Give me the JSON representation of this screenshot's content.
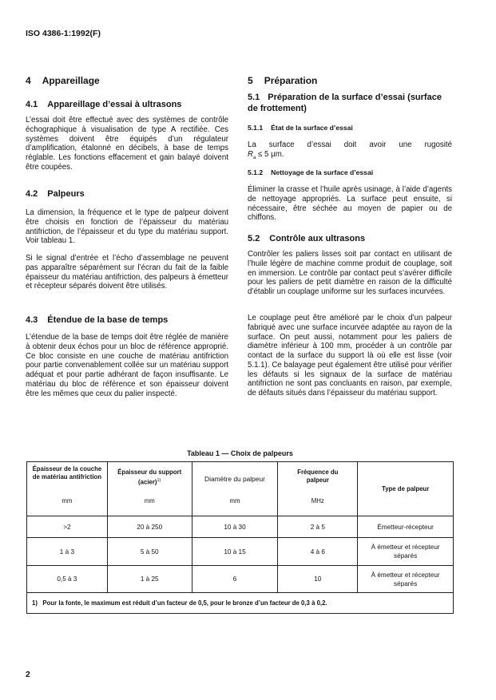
{
  "header": {
    "standard": "ISO 4386-1:1992(F)"
  },
  "left": {
    "s4": {
      "num": "4",
      "title": "Appareillage"
    },
    "s41": {
      "num": "4.1",
      "title": "Appareillage d’essai à ultrasons",
      "paras": [
        "L’essai doit être effectué avec des systèmes de contrôle échographique à visualisation de type A rectifiée. Ces systèmes doivent être équipés d’un régulateur d’amplification, étalonné en décibels, à base de temps réglable. Les fonctions effacement et gain balayé doivent être coupées."
      ]
    },
    "s42": {
      "num": "4.2",
      "title": "Palpeurs",
      "paras": [
        "La dimension, la fréquence et le type de palpeur doivent être choisis en fonction de l’épaisseur du matériau antifriction, de l’épaisseur et du type du matériau support. Voir tableau 1.",
        "Si le signal d’entrée et l’écho d’assemblage ne peuvent pas apparaître séparément sur l’écran du fait de la faible épaisseur du matériau antifriction, des palpeurs à émetteur et récepteur séparés doivent être utilisés."
      ]
    },
    "s43": {
      "num": "4.3",
      "title": "Étendue de la base de temps",
      "paras": [
        "L’étendue de la base de temps doit être réglée de manière à obtenir deux échos pour un bloc de référence approprié. Ce bloc consiste en une couche de matériau antifriction pour partie convenablement collée sur un matériau support adéquat et pour partie adhérant de façon insuffisante. Le matériau du bloc de référence et son épaisseur doivent être les mêmes que ceux du palier inspecté."
      ]
    }
  },
  "right": {
    "s5": {
      "num": "5",
      "title": "Préparation"
    },
    "s51": {
      "num": "5.1",
      "title": "Préparation de la surface d’essai (surface de frottement)"
    },
    "s511": {
      "num": "5.1.1",
      "title": "État de la surface d’essai",
      "text_a": "La surface d’essai doit avoir une rugosité",
      "symbol": "R",
      "subscript": "a",
      "text_b": " ≤ 5 µm."
    },
    "s512": {
      "num": "5.1.2",
      "title": "Nettoyage de la surface d’essai",
      "paras": [
        "Éliminer la crasse et l’huile après usinage, à l’aide d’agents de nettoyage appropriés. La surface peut ensuite, si nécessaire, être séchée au moyen de papier ou de chiffons."
      ]
    },
    "s52": {
      "num": "5.2",
      "title": "Contrôle aux ultrasons",
      "paras": [
        "Contrôler les paliers lisses soit par contact en utilisant de l’huile légère de machine comme produit de couplage, soit en immersion. Le contrôle par contact peut s’avérer difficile pour les paliers de petit diamètre en raison de la difficulté d’établir un couplage uniforme sur les surfaces incurvées.",
        "Le couplage peut être amélioré par le choix d’un palpeur fabriqué avec une surface incurvée adaptée au rayon de la surface. On peut aussi, notamment pour les paliers de diamètre inférieur à 100 mm, procéder à un contrôle par contact de la surface du support là où elle est lisse (voir 5.1.1). Ce balayage peut également être utilisé pour vérifier les défauts si les signaux de la surface de matériau antifriction ne sont pas concluants en raison, par exemple, de défauts situés dans l’épaisseur du matériau support."
      ]
    }
  },
  "table": {
    "caption": "Tableau 1 — Choix de palpeurs",
    "headers": [
      {
        "label": "Épaisseur de la couche de matériau antifriction",
        "unit": "mm"
      },
      {
        "label": "Épaisseur du support (acier)",
        "sup": "1)",
        "unit": "mm"
      },
      {
        "label": "Diamètre du palpeur",
        "unit": "mm"
      },
      {
        "label": "Fréquence du palpeur",
        "unit": "MHz"
      },
      {
        "label": "Type de palpeur",
        "unit": ""
      }
    ],
    "rows": [
      [
        ">2",
        "20 à 250",
        "10 à 30",
        "2 à 5",
        "Émetteur-récepteur"
      ],
      [
        "1 à 3",
        "5 à 50",
        "10 à 15",
        "4 à 6",
        "À émetteur et récepteur séparés"
      ],
      [
        "0,5 à 3",
        "1 à 25",
        "6",
        "10",
        "À émetteur et récepteur séparés"
      ]
    ],
    "footnote": "1)   Pour la fonte, le maximum est réduit d’un facteur de 0,5, pour le bronze d’un facteur de 0,3 à 0,2."
  },
  "footer": {
    "page_number": "2"
  }
}
